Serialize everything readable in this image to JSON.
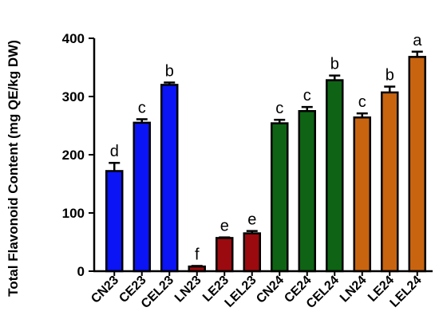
{
  "chart_data": {
    "type": "bar",
    "title": "",
    "ylabel": "Total Flavonoid Content (mg QE/kg DW)",
    "xlabel": "",
    "ylim": [
      0,
      400
    ],
    "yticks": [
      0,
      100,
      200,
      300,
      400
    ],
    "grid": false,
    "categories": [
      "CN23",
      "CE23",
      "CEL23",
      "LN23",
      "LE23",
      "LEL23",
      "CN24",
      "CE24",
      "CEL24",
      "LN24",
      "LE24",
      "LEL24"
    ],
    "values": [
      172,
      255,
      320,
      8,
      57,
      65,
      254,
      275,
      328,
      264,
      307,
      368
    ],
    "errors": [
      14,
      6,
      4,
      1,
      1,
      4,
      6,
      7,
      8,
      7,
      10,
      9
    ],
    "significance_letters": [
      "d",
      "c",
      "b",
      "f",
      "e",
      "e",
      "c",
      "c",
      "b",
      "c",
      "b",
      "a"
    ],
    "bar_colors": [
      "#0a14f5",
      "#0a14f5",
      "#0a14f5",
      "#9b0a0f",
      "#9b0a0f",
      "#9b0a0f",
      "#0e6414",
      "#0e6414",
      "#0e6414",
      "#c8640f",
      "#c8640f",
      "#c8640f"
    ]
  }
}
